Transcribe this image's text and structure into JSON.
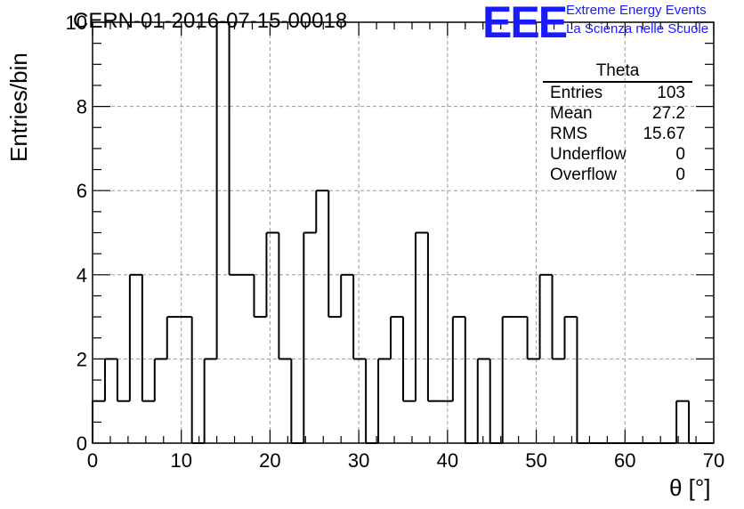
{
  "title": "CERN-01-2016-07-15-00018",
  "logo": {
    "text": "EEE",
    "line1": "Extreme Energy Events",
    "line2": "La Scienza nelle Scuole"
  },
  "stats_box": {
    "title": "Theta",
    "rows": [
      {
        "label": "Entries",
        "value": "103"
      },
      {
        "label": "Mean",
        "value": "27.2"
      },
      {
        "label": "RMS",
        "value": "15.67"
      },
      {
        "label": "Underflow",
        "value": "0"
      },
      {
        "label": "Overflow",
        "value": "0"
      }
    ]
  },
  "chart_data": {
    "type": "bar",
    "style": "step-histogram",
    "xlabel": "θ [°]",
    "ylabel": "Entries/bin",
    "xlim": [
      0,
      70
    ],
    "ylim": [
      0,
      10
    ],
    "grid": true,
    "bin_width": 1.4,
    "xticks": [
      0,
      10,
      20,
      30,
      40,
      50,
      60,
      70
    ],
    "yticks": [
      0,
      2,
      4,
      6,
      8,
      10
    ],
    "values": [
      1,
      2,
      1,
      4,
      1,
      2,
      3,
      3,
      0,
      2,
      10,
      4,
      4,
      3,
      5,
      2,
      0,
      5,
      6,
      3,
      4,
      2,
      0,
      2,
      3,
      1,
      5,
      1,
      1,
      3,
      0,
      2,
      0,
      3,
      3,
      2,
      4,
      2,
      3,
      0,
      0,
      0,
      0,
      0,
      0,
      0,
      0,
      1,
      0,
      0
    ],
    "line_color": "#000000"
  }
}
